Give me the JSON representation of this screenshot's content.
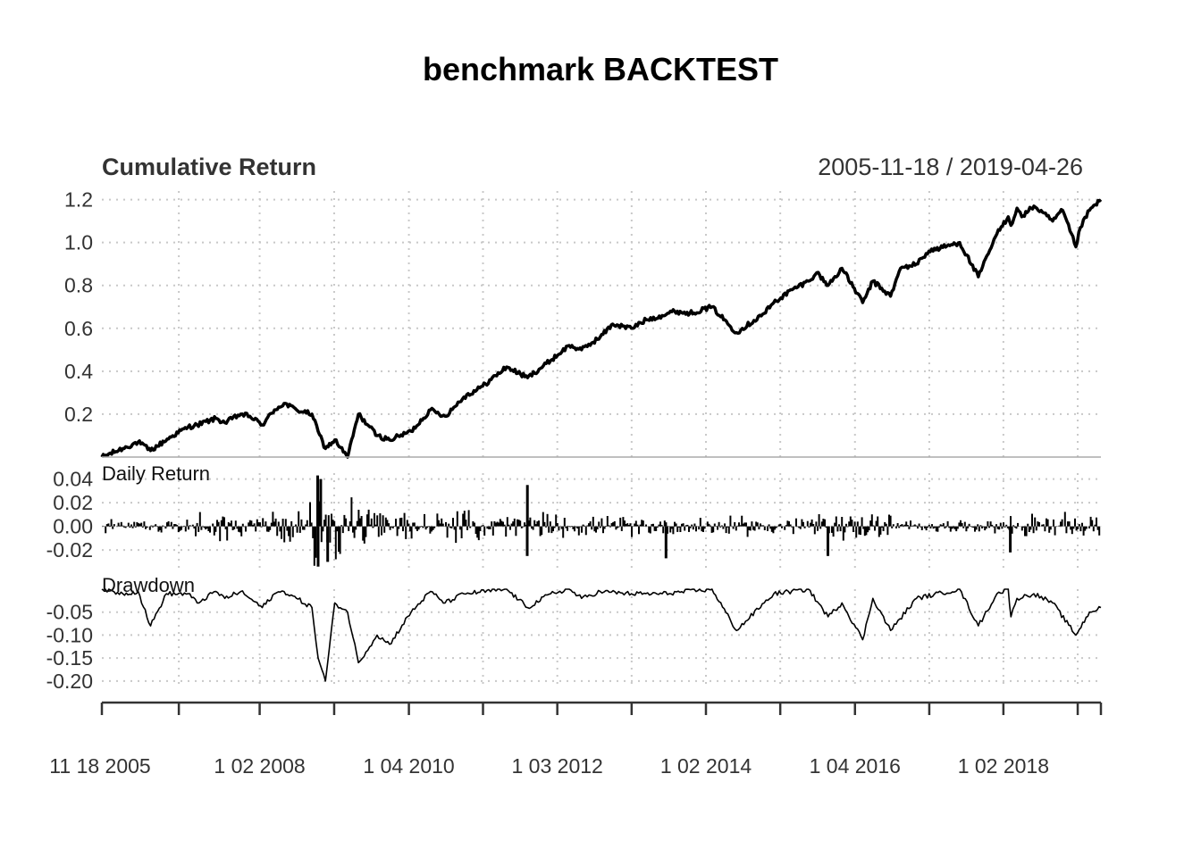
{
  "title": "benchmark BACKTEST",
  "panels": {
    "cumulative": {
      "title": "Cumulative Return",
      "date_range": "2005-11-18 / 2019-04-26"
    },
    "daily": {
      "title": "Daily Return"
    },
    "drawdown": {
      "title": "Drawdown"
    }
  },
  "x_ticks": [
    "11 18 2005",
    "1 02 2008",
    "1 04 2010",
    "1 03 2012",
    "1 02 2014",
    "1 04 2016",
    "1 02 2018"
  ],
  "chart_data": [
    {
      "type": "line",
      "title": "Cumulative Return",
      "x_range": [
        "2005-11-18",
        "2019-04-26"
      ],
      "ylim": [
        0.0,
        1.24
      ],
      "y_ticks": [
        "0.2",
        "0.4",
        "0.6",
        "0.8",
        "1.0",
        "1.2"
      ],
      "grid": true,
      "series": [
        {
          "x": [
            "2005-11-18",
            "2006-03-01",
            "2006-05-15",
            "2006-07-15",
            "2006-11-01",
            "2007-01-15",
            "2007-03-01",
            "2007-06-01",
            "2007-07-15",
            "2007-10-01",
            "2007-11-15",
            "2008-01-15",
            "2008-03-15",
            "2008-05-01",
            "2008-07-01",
            "2008-09-15",
            "2008-10-15",
            "2008-11-20",
            "2009-01-05",
            "2009-03-09",
            "2009-05-01",
            "2009-08-01",
            "2009-10-01",
            "2010-01-15",
            "2010-04-20",
            "2010-07-01",
            "2010-10-01",
            "2011-01-01",
            "2011-04-29",
            "2011-08-10",
            "2011-12-01",
            "2012-03-01",
            "2012-05-01",
            "2012-08-01",
            "2012-10-01",
            "2013-01-01",
            "2013-03-15",
            "2013-06-01",
            "2013-08-01",
            "2013-10-15",
            "2014-02-01",
            "2014-06-01",
            "2014-10-15",
            "2014-12-01",
            "2015-03-01",
            "2015-05-20",
            "2015-07-01",
            "2015-08-25",
            "2015-11-01",
            "2016-02-11",
            "2016-04-01",
            "2016-06-27",
            "2016-08-15",
            "2016-11-01",
            "2017-01-01",
            "2017-06-01",
            "2017-09-01",
            "2017-12-01",
            "2018-01-26",
            "2018-02-08",
            "2018-03-10",
            "2018-04-02",
            "2018-06-01",
            "2018-09-01",
            "2018-10-20",
            "2018-12-24",
            "2019-01-15",
            "2019-03-01",
            "2019-04-26"
          ],
          "values": [
            0.0,
            0.04,
            0.07,
            0.03,
            0.1,
            0.14,
            0.15,
            0.18,
            0.16,
            0.2,
            0.19,
            0.15,
            0.22,
            0.25,
            0.22,
            0.2,
            0.12,
            0.04,
            0.08,
            0.0,
            0.2,
            0.1,
            0.08,
            0.12,
            0.22,
            0.19,
            0.28,
            0.33,
            0.42,
            0.37,
            0.45,
            0.52,
            0.5,
            0.56,
            0.62,
            0.6,
            0.64,
            0.66,
            0.68,
            0.67,
            0.7,
            0.58,
            0.67,
            0.72,
            0.78,
            0.82,
            0.86,
            0.8,
            0.88,
            0.72,
            0.82,
            0.75,
            0.88,
            0.9,
            0.96,
            1.0,
            0.84,
            1.04,
            1.12,
            1.08,
            1.16,
            1.12,
            1.17,
            1.1,
            1.15,
            0.98,
            1.07,
            1.15,
            1.2
          ]
        }
      ]
    },
    {
      "type": "bar",
      "title": "Daily Return",
      "ylim": [
        -0.035,
        0.045
      ],
      "y_ticks": [
        "-0.02",
        "0.00",
        "0.02",
        "0.04"
      ],
      "grid": true,
      "note_volatility_regimes": [
        {
          "from": "2005-11-18",
          "to": "2007-02-01",
          "typical_abs": 0.006
        },
        {
          "from": "2007-02-01",
          "to": "2008-09-01",
          "typical_abs": 0.012
        },
        {
          "from": "2008-09-01",
          "to": "2009-06-01",
          "typical_abs": 0.028
        },
        {
          "from": "2009-06-01",
          "to": "2012-01-01",
          "typical_abs": 0.012
        },
        {
          "from": "2012-01-01",
          "to": "2015-06-01",
          "typical_abs": 0.008
        },
        {
          "from": "2015-06-01",
          "to": "2016-07-01",
          "typical_abs": 0.011
        },
        {
          "from": "2016-07-01",
          "to": "2018-01-01",
          "typical_abs": 0.005
        },
        {
          "from": "2018-01-01",
          "to": "2019-04-26",
          "typical_abs": 0.01
        }
      ],
      "extremes": [
        {
          "x": "2008-10-13",
          "value": 0.043
        },
        {
          "x": "2008-10-28",
          "value": 0.04
        },
        {
          "x": "2008-10-15",
          "value": -0.034
        },
        {
          "x": "2008-12-01",
          "value": -0.03
        },
        {
          "x": "2011-08-09",
          "value": 0.035
        },
        {
          "x": "2011-08-08",
          "value": -0.025
        },
        {
          "x": "2013-06-20",
          "value": -0.027
        },
        {
          "x": "2015-08-24",
          "value": -0.025
        },
        {
          "x": "2018-02-05",
          "value": -0.022
        }
      ]
    },
    {
      "type": "line",
      "title": "Drawdown",
      "ylim": [
        -0.21,
        0.0
      ],
      "y_ticks": [
        "-0.05",
        "-0.10",
        "-0.15",
        "-0.20"
      ],
      "grid": true,
      "series": [
        {
          "x": [
            "2005-11-18",
            "2006-03-01",
            "2006-05-15",
            "2006-07-15",
            "2006-10-01",
            "2007-01-15",
            "2007-03-01",
            "2007-06-01",
            "2007-07-15",
            "2007-10-01",
            "2007-11-15",
            "2008-01-15",
            "2008-03-15",
            "2008-05-01",
            "2008-07-01",
            "2008-09-15",
            "2008-10-15",
            "2008-11-20",
            "2009-01-05",
            "2009-03-09",
            "2009-05-01",
            "2009-08-01",
            "2009-10-01",
            "2010-01-15",
            "2010-04-20",
            "2010-07-01",
            "2010-10-01",
            "2011-04-29",
            "2011-08-10",
            "2011-12-01",
            "2012-03-01",
            "2012-05-01",
            "2012-08-01",
            "2013-01-01",
            "2013-06-01",
            "2014-02-01",
            "2014-06-01",
            "2014-10-15",
            "2014-12-01",
            "2015-05-20",
            "2015-08-25",
            "2015-11-01",
            "2016-02-11",
            "2016-04-01",
            "2016-06-27",
            "2016-11-01",
            "2017-06-01",
            "2017-09-01",
            "2017-12-01",
            "2018-01-26",
            "2018-02-08",
            "2018-03-10",
            "2018-06-01",
            "2018-09-01",
            "2018-12-24",
            "2019-03-01",
            "2019-04-26"
          ],
          "values": [
            0.0,
            -0.01,
            -0.005,
            -0.08,
            -0.01,
            -0.01,
            -0.03,
            -0.005,
            -0.02,
            -0.005,
            -0.02,
            -0.04,
            -0.01,
            -0.005,
            -0.02,
            -0.04,
            -0.15,
            -0.2,
            -0.03,
            -0.05,
            -0.16,
            -0.1,
            -0.12,
            -0.05,
            -0.005,
            -0.03,
            -0.01,
            0.0,
            -0.04,
            -0.01,
            0.0,
            -0.02,
            -0.005,
            -0.01,
            -0.01,
            0.0,
            -0.09,
            -0.03,
            -0.01,
            0.0,
            -0.06,
            -0.03,
            -0.11,
            -0.02,
            -0.09,
            -0.02,
            0.0,
            -0.08,
            -0.01,
            0.0,
            -0.06,
            -0.02,
            -0.01,
            -0.03,
            -0.1,
            -0.05,
            -0.04
          ]
        }
      ]
    }
  ]
}
